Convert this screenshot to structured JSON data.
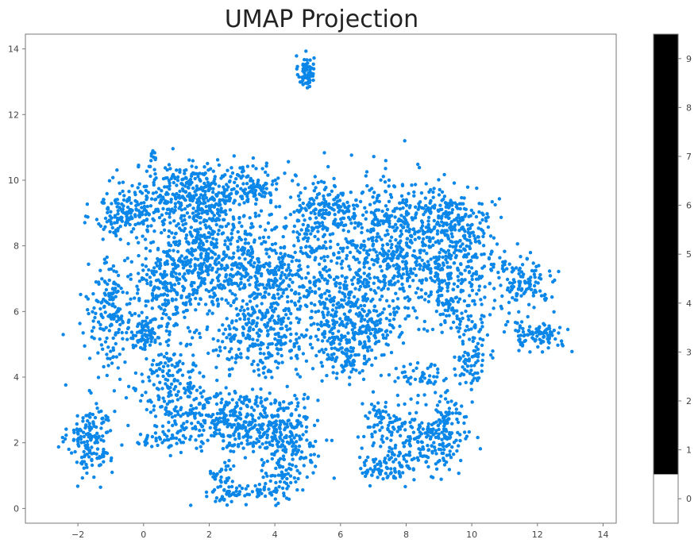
{
  "chart_data": {
    "type": "scatter",
    "title": "UMAP Projection",
    "xlabel": "",
    "ylabel": "",
    "xlim": [
      -3.6,
      14.4
    ],
    "ylim": [
      -0.45,
      14.45
    ],
    "x_ticks": [
      -2,
      0,
      2,
      4,
      6,
      8,
      10,
      12,
      14
    ],
    "y_ticks": [
      0,
      2,
      4,
      6,
      8,
      10,
      12,
      14
    ],
    "grid": false,
    "point_color": "#0a87e8",
    "colorbar": {
      "ticks": [
        0,
        1,
        2,
        3,
        4,
        5,
        6,
        7,
        8,
        9
      ],
      "range": [
        -0.5,
        9.5
      ],
      "segments": [
        {
          "from": -0.5,
          "to": 0.5,
          "color": "#ffffff"
        },
        {
          "from": 0.5,
          "to": 9.5,
          "color": "#000000"
        }
      ]
    },
    "series": [
      {
        "color": "#0a87e8",
        "clusters": [
          {
            "x": 4.95,
            "y": 13.3,
            "sx": 0.12,
            "sy": 0.25,
            "n": 70
          },
          {
            "x": 0.3,
            "y": 10.8,
            "sx": 0.05,
            "sy": 0.12,
            "n": 8
          },
          {
            "x": -1.6,
            "y": 2.1,
            "sx": 0.35,
            "sy": 0.55,
            "n": 160
          },
          {
            "x": -0.5,
            "y": 9.0,
            "sx": 0.5,
            "sy": 0.35,
            "n": 160
          },
          {
            "x": 1.5,
            "y": 9.6,
            "sx": 0.9,
            "sy": 0.45,
            "n": 320
          },
          {
            "x": 3.4,
            "y": 9.9,
            "sx": 0.4,
            "sy": 0.3,
            "n": 90
          },
          {
            "x": 2.0,
            "y": 7.8,
            "sx": 0.7,
            "sy": 1.0,
            "n": 420
          },
          {
            "x": 0.7,
            "y": 6.8,
            "sx": 0.6,
            "sy": 0.8,
            "n": 220
          },
          {
            "x": -1.0,
            "y": 6.0,
            "sx": 0.35,
            "sy": 0.8,
            "n": 170
          },
          {
            "x": 0.0,
            "y": 5.3,
            "sx": 0.3,
            "sy": 0.25,
            "n": 70
          },
          {
            "x": 3.6,
            "y": 6.6,
            "sx": 0.7,
            "sy": 1.1,
            "n": 340
          },
          {
            "x": 3.5,
            "y": 5.0,
            "sx": 0.9,
            "sy": 0.5,
            "n": 160
          },
          {
            "x": 5.2,
            "y": 8.0,
            "sx": 0.6,
            "sy": 1.0,
            "n": 230
          },
          {
            "x": 5.8,
            "y": 9.2,
            "sx": 0.5,
            "sy": 0.3,
            "n": 100
          },
          {
            "x": 6.0,
            "y": 6.0,
            "sx": 0.6,
            "sy": 0.9,
            "n": 270
          },
          {
            "x": 6.2,
            "y": 4.8,
            "sx": 0.4,
            "sy": 0.4,
            "n": 90
          },
          {
            "x": 7.2,
            "y": 8.2,
            "sx": 0.6,
            "sy": 1.0,
            "n": 270
          },
          {
            "x": 8.4,
            "y": 7.8,
            "sx": 0.7,
            "sy": 0.9,
            "n": 280
          },
          {
            "x": 9.3,
            "y": 9.0,
            "sx": 0.7,
            "sy": 0.35,
            "n": 140
          },
          {
            "x": 9.8,
            "y": 8.0,
            "sx": 0.6,
            "sy": 0.5,
            "n": 130
          },
          {
            "x": 9.6,
            "y": 6.5,
            "sx": 0.6,
            "sy": 0.6,
            "n": 150
          },
          {
            "x": 11.6,
            "y": 6.9,
            "sx": 0.45,
            "sy": 0.3,
            "n": 110
          },
          {
            "x": 12.0,
            "y": 5.3,
            "sx": 0.45,
            "sy": 0.25,
            "n": 100
          },
          {
            "x": 10.0,
            "y": 4.6,
            "sx": 0.25,
            "sy": 0.5,
            "n": 80
          },
          {
            "x": 0.8,
            "y": 4.0,
            "sx": 0.6,
            "sy": 0.5,
            "n": 130
          },
          {
            "x": 1.2,
            "y": 2.8,
            "sx": 0.5,
            "sy": 0.5,
            "n": 110
          },
          {
            "x": 2.6,
            "y": 2.7,
            "sx": 0.6,
            "sy": 0.4,
            "n": 130
          },
          {
            "x": 3.6,
            "y": 2.5,
            "sx": 0.7,
            "sy": 0.6,
            "n": 220
          },
          {
            "x": 4.6,
            "y": 2.0,
            "sx": 0.4,
            "sy": 0.6,
            "n": 120
          },
          {
            "x": 3.0,
            "y": 0.45,
            "sx": 0.6,
            "sy": 0.15,
            "n": 60
          },
          {
            "x": 2.4,
            "y": 1.0,
            "sx": 0.2,
            "sy": 0.4,
            "n": 40
          },
          {
            "x": 4.2,
            "y": 0.9,
            "sx": 0.3,
            "sy": 0.4,
            "n": 50
          },
          {
            "x": 0.4,
            "y": 2.1,
            "sx": 0.4,
            "sy": 0.1,
            "n": 30
          },
          {
            "x": 7.4,
            "y": 1.2,
            "sx": 0.4,
            "sy": 0.2,
            "n": 70
          },
          {
            "x": 8.2,
            "y": 2.0,
            "sx": 0.7,
            "sy": 0.45,
            "n": 170
          },
          {
            "x": 9.2,
            "y": 2.5,
            "sx": 0.35,
            "sy": 0.5,
            "n": 110
          },
          {
            "x": 7.3,
            "y": 2.8,
            "sx": 0.35,
            "sy": 0.5,
            "n": 50
          },
          {
            "x": 8.5,
            "y": 4.0,
            "sx": 0.5,
            "sy": 0.25,
            "n": 50
          },
          {
            "x": 7.0,
            "y": 5.5,
            "sx": 0.4,
            "sy": 0.5,
            "n": 90
          }
        ]
      }
    ]
  }
}
